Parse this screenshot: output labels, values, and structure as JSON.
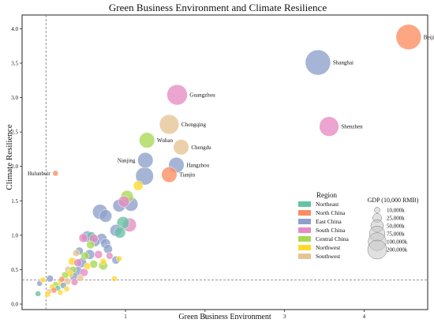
{
  "chart_data": {
    "type": "scatter",
    "title": "Green Business Environment and Climate Resilience",
    "xlabel": "Green Business Environment",
    "ylabel": "Climate Resilience",
    "xlim": [
      -0.3,
      4.8
    ],
    "ylim": [
      -0.08,
      4.2
    ],
    "xticks": [
      1,
      2,
      3,
      4
    ],
    "yticks": [
      0.0,
      0.5,
      1.0,
      1.5,
      2.0,
      2.5,
      3.0,
      3.5,
      4.0
    ],
    "ref_lines": {
      "x": 0.0,
      "y": 0.35
    },
    "grid": false,
    "region_legend": {
      "title": "Region",
      "entries": [
        {
          "name": "Northeast",
          "color": "#66c2a5"
        },
        {
          "name": "North China",
          "color": "#fc8d62"
        },
        {
          "name": "East China",
          "color": "#8da0cb"
        },
        {
          "name": "South China",
          "color": "#e78ac3"
        },
        {
          "name": "Central China",
          "color": "#a6d854"
        },
        {
          "name": "Northwest",
          "color": "#ffd92f"
        },
        {
          "name": "Southwest",
          "color": "#e5c494"
        }
      ]
    },
    "size_legend": {
      "title": "GDP (10,000 RMB)",
      "entries": [
        {
          "label": "10,000k",
          "gdp": 10000
        },
        {
          "label": "25,000k",
          "gdp": 25000
        },
        {
          "label": "50,000k",
          "gdp": 50000
        },
        {
          "label": "75,000k",
          "gdp": 75000
        },
        {
          "label": "100,000k",
          "gdp": 100000
        },
        {
          "label": "200,000k",
          "gdp": 200000
        }
      ]
    },
    "points": [
      {
        "label": "Beijing",
        "region": "North China",
        "x": 4.56,
        "y": 3.88,
        "gdp": 200000
      },
      {
        "label": "Shanghai",
        "region": "East China",
        "x": 3.42,
        "y": 3.51,
        "gdp": 200000
      },
      {
        "label": "Shenzhen",
        "region": "South China",
        "x": 3.56,
        "y": 2.58,
        "gdp": 120000
      },
      {
        "label": "Guangzhou",
        "region": "South China",
        "x": 1.65,
        "y": 3.04,
        "gdp": 130000
      },
      {
        "label": "Chongqing",
        "region": "Southwest",
        "x": 1.55,
        "y": 2.61,
        "gdp": 120000
      },
      {
        "label": "Wuhan",
        "region": "Central China",
        "x": 1.27,
        "y": 2.38,
        "gdp": 75000
      },
      {
        "label": "Chengdu",
        "region": "Southwest",
        "x": 1.7,
        "y": 2.28,
        "gdp": 75000
      },
      {
        "label": "Nanjing",
        "region": "East China",
        "x": 1.25,
        "y": 2.09,
        "gdp": 75000
      },
      {
        "label": "Hangzhou",
        "region": "East China",
        "x": 1.64,
        "y": 2.02,
        "gdp": 75000
      },
      {
        "label": "Tianjin",
        "region": "North China",
        "x": 1.55,
        "y": 1.88,
        "gdp": 75000
      },
      {
        "label": "Hulunbuir",
        "region": "North China",
        "x": 0.12,
        "y": 1.9,
        "gdp": 10000
      },
      {
        "label": "",
        "region": "East China",
        "x": 1.24,
        "y": 1.86,
        "gdp": 100000
      },
      {
        "label": "",
        "region": "Northwest",
        "x": 1.16,
        "y": 1.72,
        "gdp": 30000
      },
      {
        "label": "",
        "region": "Central China",
        "x": 1.02,
        "y": 1.56,
        "gdp": 50000
      },
      {
        "label": "",
        "region": "South China",
        "x": 0.98,
        "y": 1.49,
        "gdp": 40000
      },
      {
        "label": "",
        "region": "East China",
        "x": 1.07,
        "y": 1.45,
        "gdp": 60000
      },
      {
        "label": "",
        "region": "East China",
        "x": 0.92,
        "y": 1.43,
        "gdp": 50000
      },
      {
        "label": "",
        "region": "East China",
        "x": 0.68,
        "y": 1.34,
        "gdp": 70000
      },
      {
        "label": "",
        "region": "East China",
        "x": 0.75,
        "y": 1.28,
        "gdp": 50000
      },
      {
        "label": "",
        "region": "Northeast",
        "x": 0.97,
        "y": 1.18,
        "gdp": 50000
      },
      {
        "label": "",
        "region": "South China",
        "x": 1.05,
        "y": 1.15,
        "gdp": 60000
      },
      {
        "label": "",
        "region": "East China",
        "x": 0.88,
        "y": 1.07,
        "gdp": 45000
      },
      {
        "label": "",
        "region": "East China",
        "x": 0.52,
        "y": 0.98,
        "gdp": 40000
      },
      {
        "label": "",
        "region": "Northeast",
        "x": 0.57,
        "y": 0.98,
        "gdp": 30000
      },
      {
        "label": "",
        "region": "South China",
        "x": 0.47,
        "y": 0.96,
        "gdp": 25000
      },
      {
        "label": "",
        "region": "East China",
        "x": 0.7,
        "y": 0.95,
        "gdp": 35000
      },
      {
        "label": "",
        "region": "East China",
        "x": 0.75,
        "y": 0.88,
        "gdp": 30000
      },
      {
        "label": "",
        "region": "Northeast",
        "x": 0.93,
        "y": 1.04,
        "gdp": 40000
      },
      {
        "label": "",
        "region": "East China",
        "x": 0.62,
        "y": 0.9,
        "gdp": 25000
      },
      {
        "label": "",
        "region": "Central China",
        "x": 0.56,
        "y": 0.86,
        "gdp": 20000
      },
      {
        "label": "",
        "region": "East China",
        "x": 0.78,
        "y": 0.8,
        "gdp": 25000
      },
      {
        "label": "",
        "region": "East China",
        "x": 0.42,
        "y": 0.77,
        "gdp": 20000
      },
      {
        "label": "",
        "region": "Southwest",
        "x": 0.38,
        "y": 0.74,
        "gdp": 15000
      },
      {
        "label": "",
        "region": "East China",
        "x": 0.55,
        "y": 0.72,
        "gdp": 30000
      },
      {
        "label": "",
        "region": "South China",
        "x": 0.66,
        "y": 0.72,
        "gdp": 20000
      },
      {
        "label": "",
        "region": "Central China",
        "x": 0.49,
        "y": 0.7,
        "gdp": 20000
      },
      {
        "label": "",
        "region": "South China",
        "x": 0.8,
        "y": 0.7,
        "gdp": 15000
      },
      {
        "label": "",
        "region": "Northwest",
        "x": 0.92,
        "y": 0.66,
        "gdp": 10000
      },
      {
        "label": "",
        "region": "East China",
        "x": 0.88,
        "y": 0.64,
        "gdp": 20000
      },
      {
        "label": "",
        "region": "Northwest",
        "x": 0.33,
        "y": 0.62,
        "gdp": 20000
      },
      {
        "label": "",
        "region": "South China",
        "x": 0.4,
        "y": 0.6,
        "gdp": 20000
      },
      {
        "label": "",
        "region": "East China",
        "x": 0.45,
        "y": 0.6,
        "gdp": 30000
      },
      {
        "label": "",
        "region": "Central China",
        "x": 0.6,
        "y": 0.58,
        "gdp": 20000
      },
      {
        "label": "",
        "region": "Central China",
        "x": 0.72,
        "y": 0.56,
        "gdp": 25000
      },
      {
        "label": "",
        "region": "Northwest",
        "x": 0.52,
        "y": 0.55,
        "gdp": 15000
      },
      {
        "label": "",
        "region": "Southwest",
        "x": 0.28,
        "y": 0.5,
        "gdp": 15000
      },
      {
        "label": "",
        "region": "Central China",
        "x": 0.34,
        "y": 0.5,
        "gdp": 15000
      },
      {
        "label": "",
        "region": "East China",
        "x": 0.4,
        "y": 0.48,
        "gdp": 25000
      },
      {
        "label": "",
        "region": "South China",
        "x": 0.48,
        "y": 0.46,
        "gdp": 20000
      },
      {
        "label": "",
        "region": "Northwest",
        "x": 0.3,
        "y": 0.44,
        "gdp": 15000
      },
      {
        "label": "",
        "region": "Central China",
        "x": 0.24,
        "y": 0.42,
        "gdp": 15000
      },
      {
        "label": "",
        "region": "East China",
        "x": 0.35,
        "y": 0.4,
        "gdp": 20000
      },
      {
        "label": "",
        "region": "Southwest",
        "x": 0.43,
        "y": 0.38,
        "gdp": 15000
      },
      {
        "label": "",
        "region": "Northwest",
        "x": 0.86,
        "y": 0.37,
        "gdp": 10000
      },
      {
        "label": "",
        "region": "North China",
        "x": 0.2,
        "y": 0.36,
        "gdp": 10000
      },
      {
        "label": "",
        "region": "East China",
        "x": 0.05,
        "y": 0.37,
        "gdp": 15000
      },
      {
        "label": "",
        "region": "Southwest",
        "x": 0.27,
        "y": 0.33,
        "gdp": 15000
      },
      {
        "label": "",
        "region": "South China",
        "x": 0.36,
        "y": 0.32,
        "gdp": 15000
      },
      {
        "label": "",
        "region": "Northwest",
        "x": 0.18,
        "y": 0.3,
        "gdp": 12000
      },
      {
        "label": "",
        "region": "Central China",
        "x": 0.12,
        "y": 0.28,
        "gdp": 12000
      },
      {
        "label": "",
        "region": "East China",
        "x": 0.22,
        "y": 0.27,
        "gdp": 12000
      },
      {
        "label": "",
        "region": "Northwest",
        "x": 0.08,
        "y": 0.25,
        "gdp": 10000
      },
      {
        "label": "",
        "region": "Northeast",
        "x": 0.15,
        "y": 0.23,
        "gdp": 10000
      },
      {
        "label": "",
        "region": "Northwest",
        "x": 0.26,
        "y": 0.22,
        "gdp": 10000
      },
      {
        "label": "",
        "region": "North China",
        "x": 0.1,
        "y": 0.2,
        "gdp": 10000
      },
      {
        "label": "",
        "region": "Southwest",
        "x": 0.04,
        "y": 0.18,
        "gdp": 10000
      },
      {
        "label": "",
        "region": "Northwest",
        "x": 0.18,
        "y": 0.17,
        "gdp": 10000
      },
      {
        "label": "",
        "region": "Northeast",
        "x": -0.1,
        "y": 0.15,
        "gdp": 10000
      },
      {
        "label": "",
        "region": "Northwest",
        "x": 0.02,
        "y": 0.14,
        "gdp": 10000
      },
      {
        "label": "",
        "region": "East China",
        "x": -0.08,
        "y": 0.3,
        "gdp": 10000
      },
      {
        "label": "",
        "region": "Northwest",
        "x": -0.04,
        "y": 0.35,
        "gdp": 10000
      },
      {
        "label": "",
        "region": "South China",
        "x": 0.6,
        "y": 0.95,
        "gdp": 25000
      },
      {
        "label": "",
        "region": "Northwest",
        "x": 0.72,
        "y": 0.62,
        "gdp": 12000
      }
    ]
  }
}
